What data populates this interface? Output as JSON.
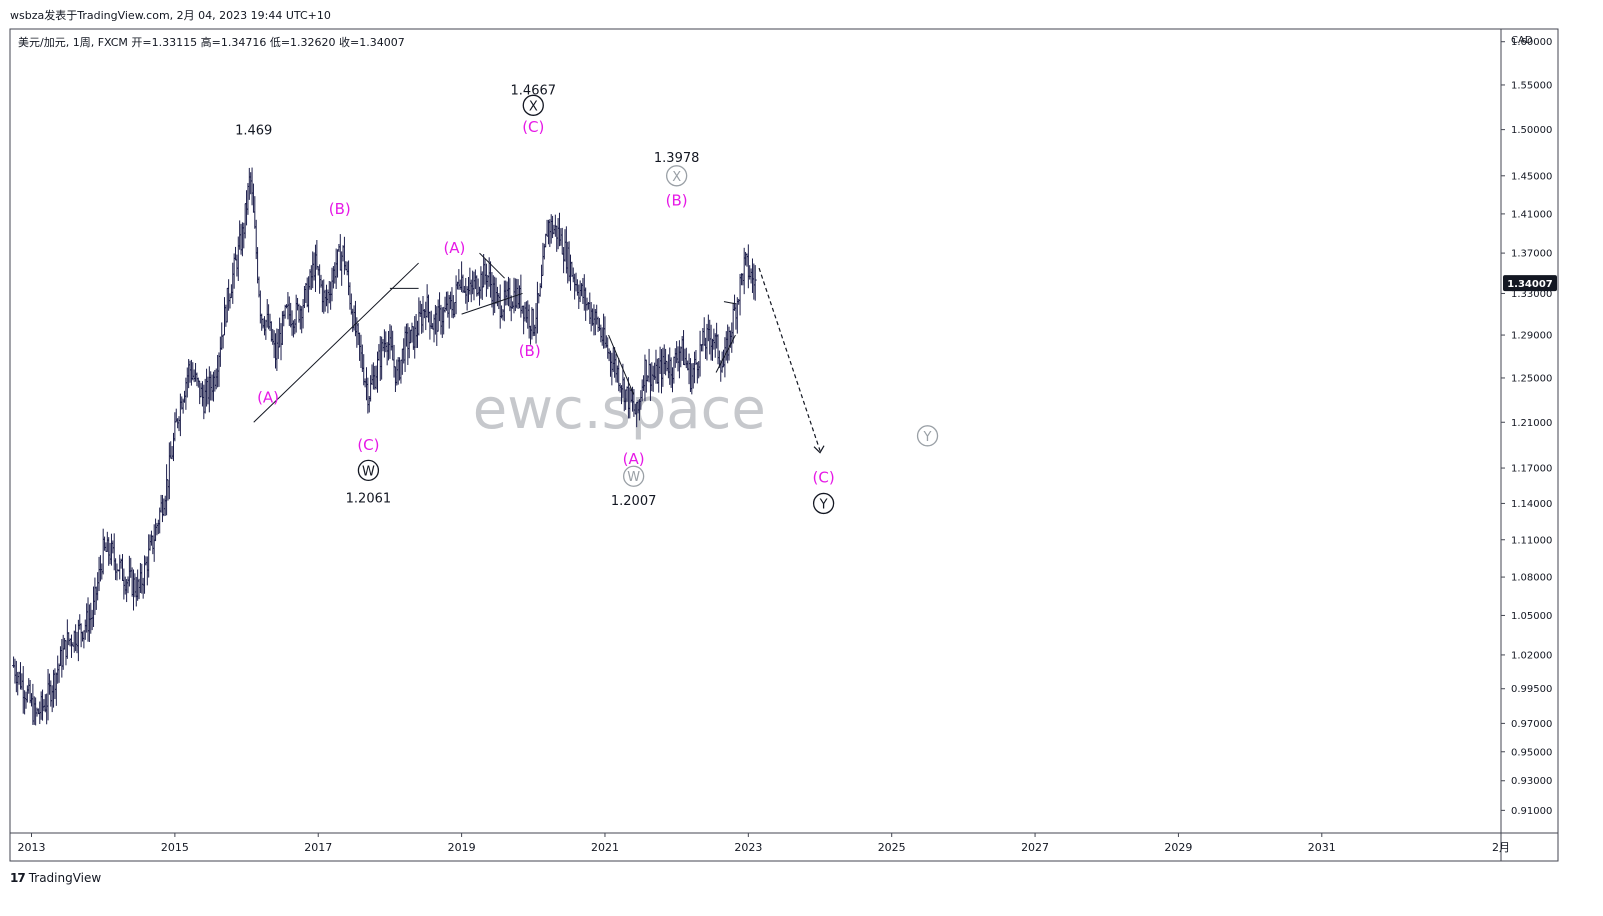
{
  "header": {
    "publisher": "wsbza发表于TradingView.com",
    "timestamp": "2月 04, 2023 19:44 UTC+10"
  },
  "legend": "美元/加元, 1周, FXCM  开=1.33115  高=1.34716  低=1.32620  收=1.34007",
  "footer": {
    "logo": "17",
    "brand": "TradingView"
  },
  "watermark": "ewc.space",
  "colors": {
    "bars": "#1b1d4a",
    "magenta": "#e619e6",
    "black": "#131722",
    "gray": "#9aa0a6",
    "price_badge": "#131722"
  },
  "chart_data": {
    "type": "ohlc",
    "symbol": "美元/加元",
    "currency": "CAD",
    "y_ticks": [
      "1.60000",
      "1.55000",
      "1.50000",
      "1.45000",
      "1.41000",
      "1.37000",
      "1.33000",
      "1.29000",
      "1.25000",
      "1.21000",
      "1.17000",
      "1.14000",
      "1.11000",
      "1.08000",
      "1.05000",
      "1.02000",
      "0.99500",
      "0.97000",
      "0.95000",
      "0.93000",
      "0.91000"
    ],
    "x_ticks": [
      "2013",
      "2015",
      "2017",
      "2019",
      "2021",
      "2023",
      "2025",
      "2027",
      "2029",
      "2031",
      "2月"
    ],
    "last_price": "1.34007",
    "log_scale": true,
    "ylim": [
      0.895,
      1.615
    ],
    "price_path": [
      [
        2012.75,
        1.012
      ],
      [
        2012.95,
        0.99
      ],
      [
        2013.05,
        0.975
      ],
      [
        2013.2,
        0.985
      ],
      [
        2013.5,
        1.03
      ],
      [
        2013.7,
        1.04
      ],
      [
        2013.85,
        1.05
      ],
      [
        2014.0,
        1.1
      ],
      [
        2014.1,
        1.1
      ],
      [
        2014.3,
        1.08
      ],
      [
        2014.5,
        1.07
      ],
      [
        2014.7,
        1.11
      ],
      [
        2014.9,
        1.16
      ],
      [
        2015.05,
        1.22
      ],
      [
        2015.2,
        1.26
      ],
      [
        2015.4,
        1.23
      ],
      [
        2015.55,
        1.25
      ],
      [
        2015.75,
        1.33
      ],
      [
        2015.95,
        1.39
      ],
      [
        2016.05,
        1.45
      ],
      [
        2016.2,
        1.31
      ],
      [
        2016.3,
        1.3
      ],
      [
        2016.4,
        1.27
      ],
      [
        2016.55,
        1.31
      ],
      [
        2016.7,
        1.31
      ],
      [
        2016.85,
        1.33
      ],
      [
        2016.95,
        1.36
      ],
      [
        2017.1,
        1.32
      ],
      [
        2017.25,
        1.36
      ],
      [
        2017.35,
        1.37
      ],
      [
        2017.5,
        1.3
      ],
      [
        2017.7,
        1.235
      ],
      [
        2017.8,
        1.255
      ],
      [
        2017.95,
        1.29
      ],
      [
        2018.1,
        1.25
      ],
      [
        2018.2,
        1.28
      ],
      [
        2018.35,
        1.29
      ],
      [
        2018.5,
        1.32
      ],
      [
        2018.6,
        1.3
      ],
      [
        2018.75,
        1.31
      ],
      [
        2018.9,
        1.32
      ],
      [
        2018.97,
        1.35
      ],
      [
        2019.1,
        1.33
      ],
      [
        2019.2,
        1.34
      ],
      [
        2019.35,
        1.35
      ],
      [
        2019.5,
        1.32
      ],
      [
        2019.6,
        1.32
      ],
      [
        2019.75,
        1.33
      ],
      [
        2019.85,
        1.32
      ],
      [
        2020.0,
        1.3
      ],
      [
        2020.1,
        1.33
      ],
      [
        2020.2,
        1.4
      ],
      [
        2020.35,
        1.39
      ],
      [
        2020.5,
        1.36
      ],
      [
        2020.6,
        1.34
      ],
      [
        2020.75,
        1.32
      ],
      [
        2020.9,
        1.3
      ],
      [
        2021.0,
        1.28
      ],
      [
        2021.15,
        1.26
      ],
      [
        2021.3,
        1.235
      ],
      [
        2021.45,
        1.215
      ],
      [
        2021.55,
        1.26
      ],
      [
        2021.7,
        1.25
      ],
      [
        2021.85,
        1.265
      ],
      [
        2021.95,
        1.26
      ],
      [
        2022.05,
        1.28
      ],
      [
        2022.2,
        1.25
      ],
      [
        2022.35,
        1.28
      ],
      [
        2022.5,
        1.29
      ],
      [
        2022.65,
        1.26
      ],
      [
        2022.8,
        1.31
      ],
      [
        2022.95,
        1.36
      ],
      [
        2023.05,
        1.345
      ],
      [
        2023.1,
        1.34
      ]
    ],
    "wave_lines": [
      [
        [
          2016.1,
          1.21
        ],
        [
          2018.4,
          1.36
        ]
      ],
      [
        [
          2018.0,
          1.335
        ],
        [
          2018.4,
          1.335
        ]
      ],
      [
        [
          2019.0,
          1.31
        ],
        [
          2019.85,
          1.33
        ]
      ],
      [
        [
          2019.25,
          1.37
        ],
        [
          2019.6,
          1.345
        ]
      ],
      [
        [
          2021.05,
          1.29
        ],
        [
          2021.4,
          1.235
        ]
      ],
      [
        [
          2022.55,
          1.255
        ],
        [
          2022.82,
          1.29
        ]
      ],
      [
        [
          2022.66,
          1.322
        ],
        [
          2022.82,
          1.32
        ]
      ]
    ],
    "projection": [
      [
        2023.15,
        1.355
      ],
      [
        2024.0,
        1.185
      ]
    ],
    "annotations": [
      {
        "text": "1.469",
        "x": 2016.1,
        "y": 1.5,
        "style": "black"
      },
      {
        "text": "(B)",
        "x": 2017.3,
        "y": 1.415,
        "style": "magenta"
      },
      {
        "text": "(A)",
        "x": 2016.3,
        "y": 1.232,
        "style": "magenta"
      },
      {
        "text": "(C)",
        "x": 2017.7,
        "y": 1.19,
        "style": "magenta"
      },
      {
        "text": "W",
        "x": 2017.7,
        "y": 1.168,
        "style": "circle-black"
      },
      {
        "text": "1.2061",
        "x": 2017.7,
        "y": 1.145,
        "style": "black"
      },
      {
        "text": "(A)",
        "x": 2018.9,
        "y": 1.375,
        "style": "magenta"
      },
      {
        "text": "(B)",
        "x": 2019.95,
        "y": 1.275,
        "style": "magenta"
      },
      {
        "text": "1.4667",
        "x": 2020.0,
        "y": 1.545,
        "style": "black"
      },
      {
        "text": "X",
        "x": 2020.0,
        "y": 1.527,
        "style": "circle-black"
      },
      {
        "text": "(C)",
        "x": 2020.0,
        "y": 1.503,
        "style": "magenta"
      },
      {
        "text": "1.3978",
        "x": 2022.0,
        "y": 1.47,
        "style": "black"
      },
      {
        "text": "X",
        "x": 2022.0,
        "y": 1.45,
        "style": "circle-gray"
      },
      {
        "text": "(B)",
        "x": 2022.0,
        "y": 1.424,
        "style": "magenta"
      },
      {
        "text": "(A)",
        "x": 2021.4,
        "y": 1.178,
        "style": "magenta"
      },
      {
        "text": "W",
        "x": 2021.4,
        "y": 1.163,
        "style": "circle-gray"
      },
      {
        "text": "1.2007",
        "x": 2021.4,
        "y": 1.143,
        "style": "black"
      },
      {
        "text": "(C)",
        "x": 2024.05,
        "y": 1.162,
        "style": "magenta"
      },
      {
        "text": "Y",
        "x": 2024.05,
        "y": 1.14,
        "style": "circle-black"
      },
      {
        "text": "Y",
        "x": 2025.5,
        "y": 1.198,
        "style": "circle-gray"
      }
    ]
  }
}
